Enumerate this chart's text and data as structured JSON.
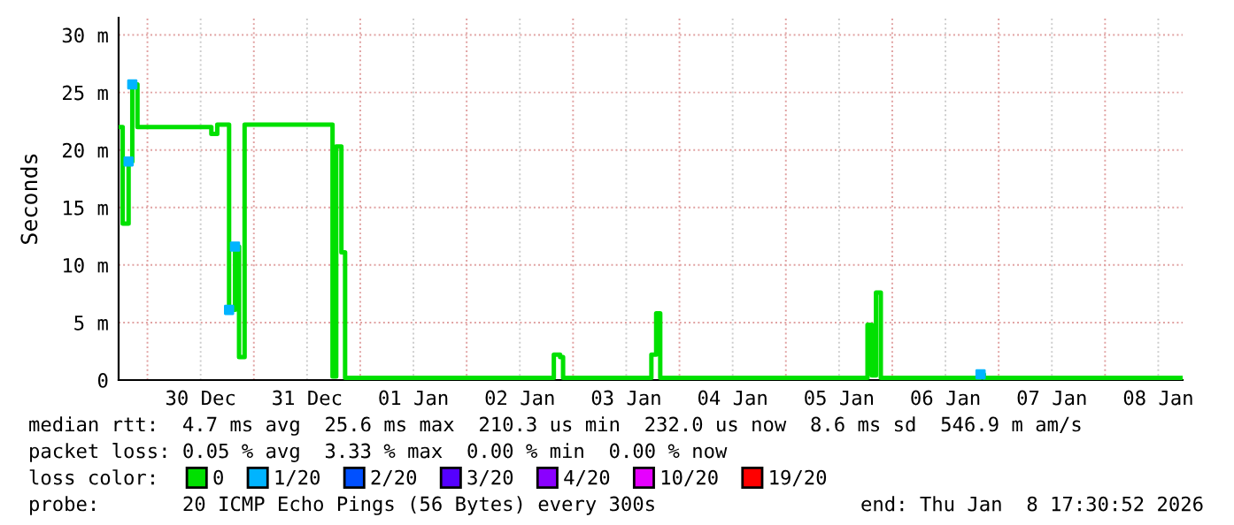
{
  "chart_data": {
    "type": "step",
    "ylabel": "Seconds",
    "xlim": [
      "2025-12-29T17:30",
      "2026-01-08T17:30"
    ],
    "xticks": [
      {
        "value": "2025-12-30T00:00",
        "label": null
      },
      {
        "value": "2025-12-30T12:00",
        "label": "30 Dec"
      },
      {
        "value": "2025-12-31T00:00",
        "label": null
      },
      {
        "value": "2025-12-31T12:00",
        "label": "31 Dec"
      },
      {
        "value": "2026-01-01T00:00",
        "label": null
      },
      {
        "value": "2026-01-01T12:00",
        "label": "01 Jan"
      },
      {
        "value": "2026-01-02T00:00",
        "label": null
      },
      {
        "value": "2026-01-02T12:00",
        "label": "02 Jan"
      },
      {
        "value": "2026-01-03T00:00",
        "label": null
      },
      {
        "value": "2026-01-03T12:00",
        "label": "03 Jan"
      },
      {
        "value": "2026-01-04T00:00",
        "label": null
      },
      {
        "value": "2026-01-04T12:00",
        "label": "04 Jan"
      },
      {
        "value": "2026-01-05T00:00",
        "label": null
      },
      {
        "value": "2026-01-05T12:00",
        "label": "05 Jan"
      },
      {
        "value": "2026-01-06T00:00",
        "label": null
      },
      {
        "value": "2026-01-06T12:00",
        "label": "06 Jan"
      },
      {
        "value": "2026-01-07T00:00",
        "label": null
      },
      {
        "value": "2026-01-07T12:00",
        "label": "07 Jan"
      },
      {
        "value": "2026-01-08T00:00",
        "label": null
      },
      {
        "value": "2026-01-08T12:00",
        "label": "08 Jan"
      }
    ],
    "ylim": [
      0,
      31.5
    ],
    "yticks": [
      0,
      {
        "value": 5,
        "label": "5 m"
      },
      {
        "value": 10,
        "label": "10 m"
      },
      {
        "value": 15,
        "label": "15 m"
      },
      {
        "value": 20,
        "label": "20 m"
      },
      {
        "value": 25,
        "label": "25 m"
      },
      {
        "value": 30,
        "label": "30 m"
      }
    ],
    "grid": true,
    "legend": "bottom left",
    "legend_title": "loss color:",
    "series": [
      {
        "name": "0",
        "color": "#00e000",
        "x": [
          "2025-12-29T17:30",
          "2025-12-29T18:25",
          "2025-12-29T19:45",
          "2025-12-29T20:35",
          "2025-12-29T21:45",
          "2025-12-30T14:25",
          "2025-12-30T15:45",
          "2025-12-30T18:25",
          "2025-12-30T19:45",
          "2025-12-30T20:40",
          "2025-12-30T21:55",
          "2025-12-31T17:45",
          "2025-12-31T18:35",
          "2025-12-31T19:45",
          "2025-12-31T20:35",
          "2026-01-02T19:40",
          "2026-01-02T21:05",
          "2026-01-02T21:45",
          "2026-01-03T17:40",
          "2026-01-03T18:45",
          "2026-01-03T19:40",
          "2026-01-05T18:25",
          "2026-01-05T19:25",
          "2026-01-05T20:20",
          "2026-01-05T21:25",
          "2026-01-06T19:55",
          "2026-01-06T20:40",
          "2026-01-08T17:25"
        ],
        "values": [
          22.0,
          13.6,
          19.0,
          25.7,
          22.0,
          21.4,
          22.2,
          6.1,
          11.6,
          2.0,
          22.2,
          0.3,
          20.3,
          11.1,
          0.2,
          2.2,
          2.0,
          0.2,
          2.2,
          5.8,
          0.2,
          4.8,
          0.4,
          7.6,
          0.2,
          0.5,
          0.2,
          0.2
        ]
      },
      {
        "name": "1/20",
        "color": "#00b4ff",
        "type": "scatter",
        "marker": "square",
        "x": [
          "2025-12-29T19:45",
          "2025-12-29T20:35",
          "2025-12-30T18:25",
          "2025-12-30T19:45",
          "2026-01-06T19:55"
        ],
        "values": [
          19.0,
          25.7,
          6.1,
          11.6,
          0.5
        ]
      },
      {
        "name": "2/20",
        "color": "#0050ff",
        "type": "scatter",
        "marker": "square"
      },
      {
        "name": "3/20",
        "color": "#5500ff",
        "type": "scatter",
        "marker": "square"
      },
      {
        "name": "4/20",
        "color": "#8a00ff",
        "type": "scatter",
        "marker": "square"
      },
      {
        "name": "10/20",
        "color": "#e600ff",
        "type": "scatter",
        "marker": "square"
      },
      {
        "name": "19/20",
        "color": "#ff0000",
        "type": "scatter",
        "marker": "square"
      }
    ],
    "annotations": [
      "median rtt:  4.7 ms avg  25.6 ms max  210.3 us min  232.0 us now  8.6 ms sd  546.9 m am/s",
      "packet loss: 0.05 % avg  3.33 % max  0.00 % min  0.00 % now",
      "probe:       20 ICMP Echo Pings (56 Bytes) every 300s",
      "end: Thu Jan  8 17:30:52 2026"
    ]
  }
}
